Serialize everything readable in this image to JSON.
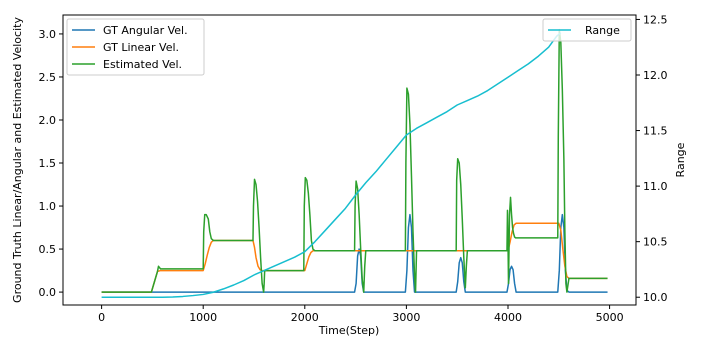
{
  "chart_data": {
    "type": "line",
    "xlabel": "Time(Step)",
    "ylabel_left": "Ground Truth Linear/Angular and Estimated Velocity",
    "ylabel_right": "Range",
    "xlim": [
      -380,
      5260
    ],
    "ylim_left": [
      -0.15,
      3.22
    ],
    "ylim_right": [
      9.93,
      12.54
    ],
    "x_ticks": [
      0,
      1000,
      2000,
      3000,
      4000,
      5000
    ],
    "y_ticks_left": [
      0.0,
      0.5,
      1.0,
      1.5,
      2.0,
      2.5,
      3.0
    ],
    "y_ticks_right": [
      10.0,
      10.5,
      11.0,
      11.5,
      12.0,
      12.5
    ],
    "legend_left": [
      "GT Angular Vel.",
      "GT Linear Vel.",
      "Estimated Vel."
    ],
    "legend_right": [
      "Range"
    ],
    "legend_left_position": "top-left",
    "legend_right_position": "top-right",
    "grid": false,
    "colors": {
      "gt_angular": "#1f77b4",
      "gt_linear": "#ff7f0e",
      "estimated": "#2ca02c",
      "range": "#17becf"
    },
    "series": [
      {
        "name": "GT Angular Vel.",
        "axis": "left",
        "x": [
          0,
          2490,
          2505,
          2520,
          2535,
          2550,
          2565,
          2580,
          2990,
          3005,
          3020,
          3035,
          3050,
          3065,
          3080,
          3490,
          3505,
          3520,
          3535,
          3550,
          3565,
          3580,
          3990,
          4005,
          4020,
          4035,
          4050,
          4065,
          4080,
          4490,
          4505,
          4520,
          4535,
          4550,
          4565,
          4580,
          4600,
          4980
        ],
        "y": [
          0,
          0,
          0.1,
          0.42,
          0.5,
          0.42,
          0.1,
          0,
          0,
          0.25,
          0.75,
          0.9,
          0.75,
          0.25,
          0,
          0,
          0.12,
          0.34,
          0.4,
          0.34,
          0.12,
          0,
          0,
          0.1,
          0.26,
          0.3,
          0.26,
          0.1,
          0,
          0,
          0.25,
          0.75,
          0.9,
          0.75,
          0.25,
          0.02,
          0,
          0
        ]
      },
      {
        "name": "GT Linear Vel.",
        "axis": "left",
        "x": [
          0,
          490,
          520,
          550,
          580,
          1000,
          1020,
          1040,
          1060,
          1080,
          1100,
          1490,
          1505,
          1520,
          1540,
          1560,
          1580,
          1600,
          2000,
          2020,
          2040,
          2060,
          2080,
          2100,
          4000,
          4020,
          4040,
          4060,
          4080,
          4100,
          4500,
          4520,
          4540,
          4560,
          4580,
          4600,
          4980
        ],
        "y": [
          0,
          0,
          0.12,
          0.24,
          0.25,
          0.25,
          0.33,
          0.43,
          0.52,
          0.58,
          0.6,
          0.6,
          0.52,
          0.4,
          0.3,
          0.26,
          0.25,
          0.25,
          0.25,
          0.33,
          0.41,
          0.46,
          0.48,
          0.48,
          0.48,
          0.58,
          0.7,
          0.78,
          0.8,
          0.8,
          0.8,
          0.72,
          0.5,
          0.3,
          0.18,
          0.16,
          0.16
        ]
      },
      {
        "name": "Estimated Vel.",
        "axis": "left",
        "x": [
          0,
          490,
          520,
          550,
          560,
          580,
          1000,
          1005,
          1015,
          1030,
          1050,
          1065,
          1080,
          1100,
          1490,
          1495,
          1505,
          1520,
          1535,
          1550,
          1565,
          1580,
          1595,
          1600,
          1605,
          1990,
          1995,
          2005,
          2020,
          2035,
          2050,
          2065,
          2080,
          2100,
          2490,
          2495,
          2505,
          2520,
          2535,
          2550,
          2565,
          2580,
          2590,
          2600,
          2990,
          2995,
          3005,
          3020,
          3035,
          3050,
          3065,
          3080,
          3090,
          3100,
          3490,
          3495,
          3505,
          3520,
          3535,
          3550,
          3565,
          3580,
          3590,
          3600,
          3990,
          3995,
          4000,
          4005,
          4010,
          4015,
          4025,
          4035,
          4045,
          4055,
          4065,
          4075,
          4085,
          4100,
          4490,
          4495,
          4505,
          4520,
          4535,
          4550,
          4560,
          4570,
          4580,
          4600,
          4980
        ],
        "y": [
          0,
          0,
          0.12,
          0.24,
          0.3,
          0.27,
          0.27,
          0.7,
          0.9,
          0.9,
          0.85,
          0.7,
          0.62,
          0.6,
          0.6,
          1.0,
          1.31,
          1.25,
          1.05,
          0.75,
          0.4,
          0.1,
          0.0,
          0.1,
          0.25,
          0.25,
          1.0,
          1.33,
          1.3,
          1.15,
          0.9,
          0.6,
          0.5,
          0.48,
          0.48,
          1.0,
          1.29,
          1.2,
          0.9,
          0.5,
          0.15,
          0.0,
          0.3,
          0.48,
          0.48,
          1.5,
          2.37,
          2.3,
          1.95,
          1.35,
          0.7,
          0.2,
          0.0,
          0.48,
          0.48,
          1.3,
          1.55,
          1.5,
          1.25,
          0.85,
          0.4,
          0.05,
          0.3,
          0.48,
          0.48,
          0.95,
          0.6,
          0.1,
          0.5,
          0.9,
          1.1,
          0.9,
          0.75,
          0.68,
          0.64,
          0.63,
          0.63,
          0.63,
          0.63,
          1.8,
          3.05,
          2.9,
          2.35,
          1.55,
          0.7,
          0.1,
          0.0,
          0.16,
          0.16
        ]
      },
      {
        "name": "Range",
        "axis": "right",
        "x": [
          0,
          500,
          600,
          700,
          800,
          900,
          1000,
          1100,
          1200,
          1300,
          1400,
          1500,
          1700,
          1900,
          2000,
          2100,
          2200,
          2300,
          2400,
          2500,
          2600,
          2700,
          2800,
          2900,
          3000,
          3100,
          3200,
          3300,
          3400,
          3500,
          3600,
          3700,
          3800,
          3900,
          4000,
          4100,
          4200,
          4300,
          4400,
          4480,
          4520
        ],
        "y": [
          10.0,
          10.0,
          10.0,
          10.002,
          10.007,
          10.015,
          10.025,
          10.045,
          10.075,
          10.11,
          10.15,
          10.2,
          10.28,
          10.36,
          10.41,
          10.5,
          10.6,
          10.7,
          10.8,
          10.92,
          11.03,
          11.13,
          11.24,
          11.35,
          11.46,
          11.52,
          11.57,
          11.62,
          11.67,
          11.73,
          11.77,
          11.81,
          11.86,
          11.92,
          11.98,
          12.04,
          12.1,
          12.17,
          12.25,
          12.35,
          12.38
        ]
      }
    ]
  }
}
